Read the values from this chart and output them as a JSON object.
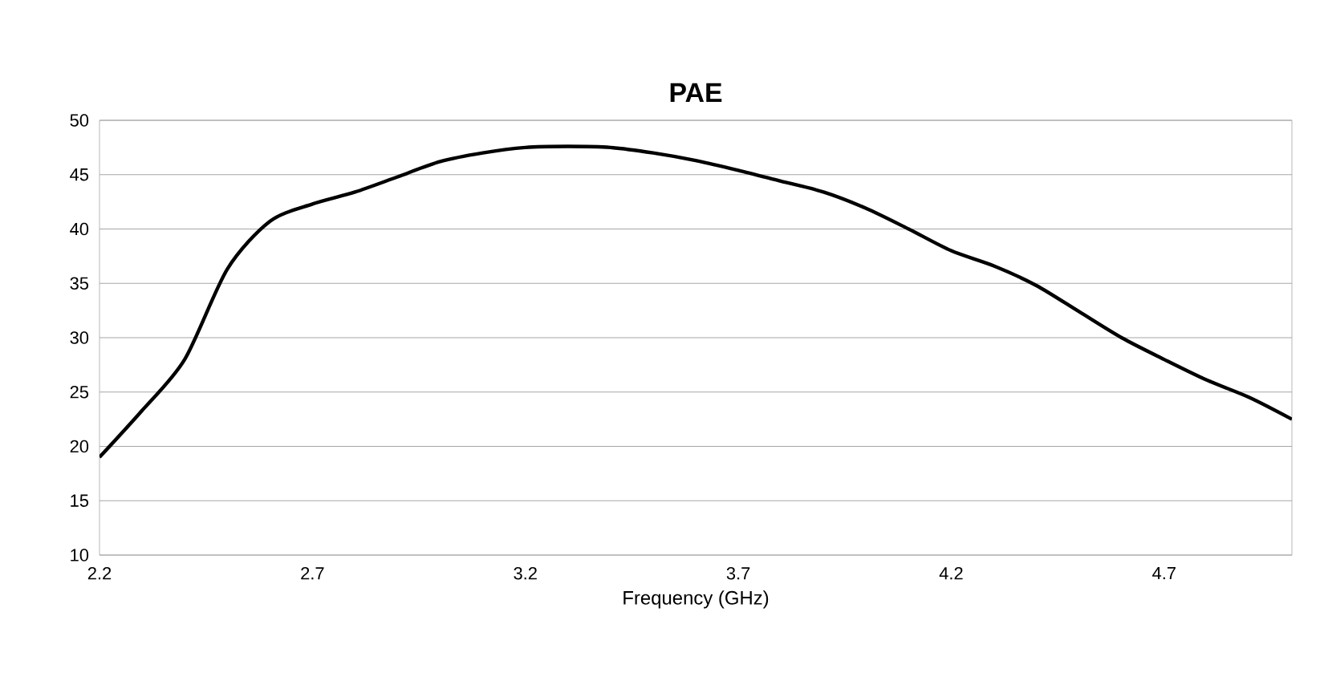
{
  "chart_data": {
    "type": "line",
    "title": "PAE",
    "xlabel": "Frequency (GHz)",
    "x": [
      2.2,
      2.3,
      2.4,
      2.5,
      2.6,
      2.7,
      2.8,
      2.9,
      3.0,
      3.1,
      3.2,
      3.3,
      3.4,
      3.5,
      3.6,
      3.7,
      3.8,
      3.9,
      4.0,
      4.1,
      4.2,
      4.3,
      4.4,
      4.5,
      4.6,
      4.7,
      4.8,
      4.9,
      5.0
    ],
    "series": [
      {
        "color": "#000000",
        "values": [
          19.0,
          23.3,
          28.0,
          36.3,
          40.7,
          42.3,
          43.4,
          44.8,
          46.2,
          47.0,
          47.5,
          47.6,
          47.5,
          47.0,
          46.3,
          45.4,
          44.4,
          43.4,
          41.9,
          40.0,
          38.0,
          36.6,
          34.8,
          32.4,
          30.0,
          28.0,
          26.1,
          24.5,
          22.5
        ]
      }
    ],
    "xlim": [
      2.2,
      5.0
    ],
    "ylim": [
      10,
      50
    ],
    "xticks": [
      2.2,
      2.7,
      3.2,
      3.7,
      4.2,
      4.7
    ],
    "yticks": [
      10,
      15,
      20,
      25,
      30,
      35,
      40,
      45,
      50
    ],
    "grid": "y",
    "marker": "none",
    "line_style": "solid"
  }
}
